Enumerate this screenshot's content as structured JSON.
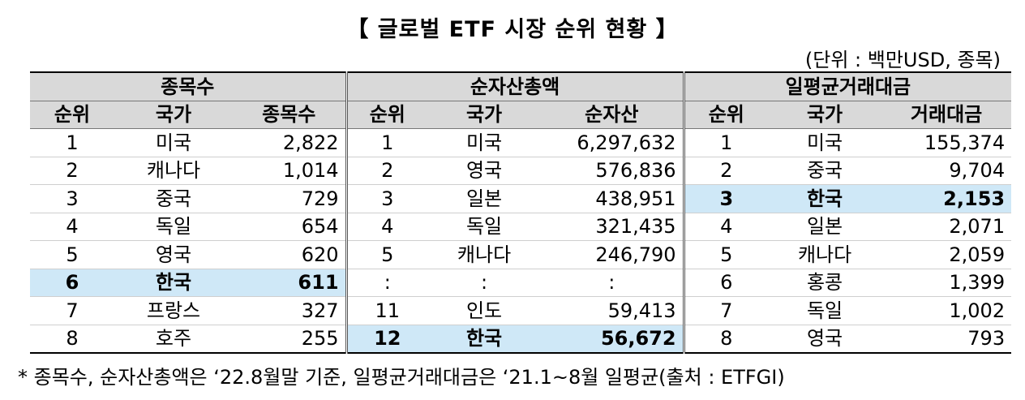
{
  "title": "【 글로벌 ETF 시장 순위 현황 】",
  "unit": "(단위 : 백만USD, 종목)",
  "groups": [
    "종목수",
    "순자산총액",
    "일평균거래대금"
  ],
  "headers": [
    "순위",
    "국가",
    "종목수",
    "순위",
    "국가",
    "순자산",
    "순위",
    "국가",
    "거래대금"
  ],
  "rows": [
    [
      "1",
      "미국",
      "2,822",
      "1",
      "미국",
      "6,297,632",
      "1",
      "미국",
      "155,374"
    ],
    [
      "2",
      "캐나다",
      "1,014",
      "2",
      "영국",
      "576,836",
      "2",
      "중국",
      "9,704"
    ],
    [
      "3",
      "중국",
      "729",
      "3",
      "일본",
      "438,951",
      "3",
      "한국",
      "2,153"
    ],
    [
      "4",
      "독일",
      "654",
      "4",
      "독일",
      "321,435",
      "4",
      "일본",
      "2,071"
    ],
    [
      "5",
      "영국",
      "620",
      "5",
      "캐나다",
      "246,790",
      "5",
      "캐나다",
      "2,059"
    ],
    [
      "6",
      "한국",
      "611",
      ":",
      ":",
      ":",
      "6",
      "홍콩",
      "1,399"
    ],
    [
      "7",
      "프랑스",
      "327",
      "11",
      "인도",
      "59,413",
      "7",
      "독일",
      "1,002"
    ],
    [
      "8",
      "호주",
      "255",
      "12",
      "한국",
      "56,672",
      "8",
      "영국",
      "793"
    ]
  ],
  "footnote": "* 종목수, 순자산총액은 ‘22.8월말 기준, 일평균거래대금은 ‘21.1~8월 일평균(출처 : ETFGI)"
}
